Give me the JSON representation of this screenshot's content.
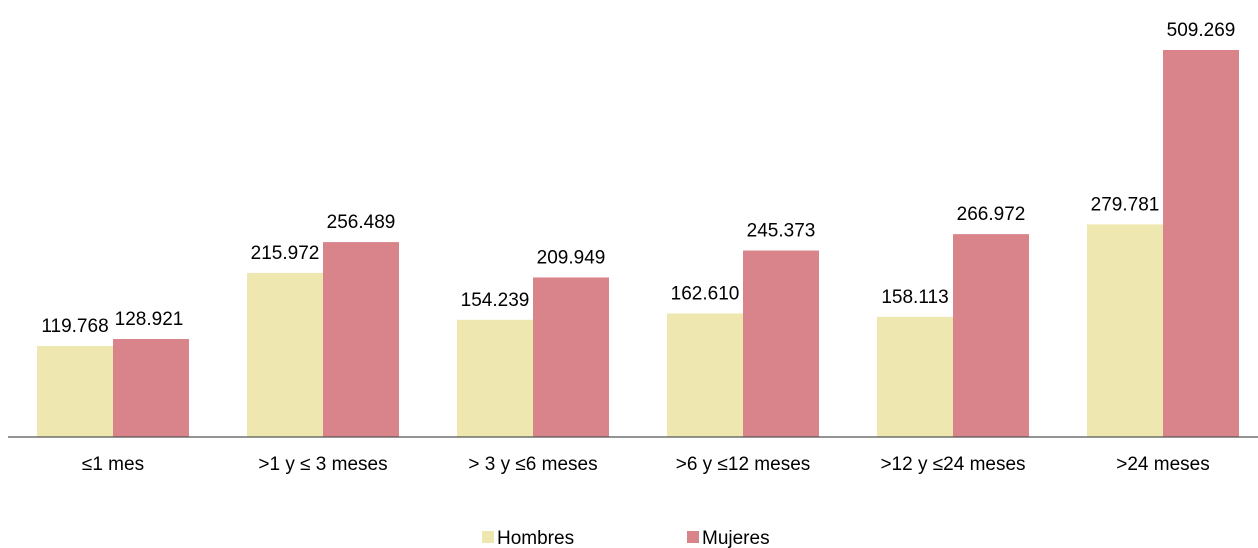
{
  "chart_data": {
    "type": "bar",
    "categories": [
      "≤1 mes",
      ">1 y ≤ 3 meses",
      "> 3 y ≤6 meses",
      ">6 y ≤12 meses",
      ">12 y ≤24 meses",
      ">24 meses"
    ],
    "series": [
      {
        "name": "Hombres",
        "values": [
          119768,
          215972,
          154239,
          162610,
          158113,
          279781
        ],
        "labels": [
          "119.768",
          "215.972",
          "154.239",
          "162.610",
          "158.113",
          "279.781"
        ],
        "color": "#EEE8B0"
      },
      {
        "name": "Mujeres",
        "values": [
          128921,
          256489,
          209949,
          245373,
          266972,
          509269
        ],
        "labels": [
          "128.921",
          "256.489",
          "209.949",
          "245.373",
          "266.972",
          "509.269"
        ],
        "color": "#D9838B"
      }
    ],
    "title": "",
    "xlabel": "",
    "ylabel": "",
    "ylim": [
      0,
      509269
    ],
    "grid": false,
    "legend_position": "bottom"
  }
}
